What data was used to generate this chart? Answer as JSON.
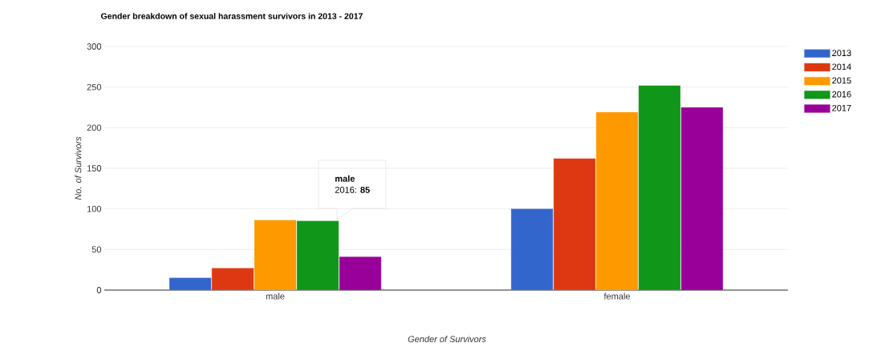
{
  "chart_data": {
    "type": "bar",
    "title": "Gender breakdown of sexual harassment survivors in 2013 - 2017",
    "xlabel": "Gender of Survivors",
    "ylabel": "No. of Survivors",
    "categories": [
      "male",
      "female"
    ],
    "series": [
      {
        "name": "2013",
        "color": "#3366cc",
        "values": [
          15,
          100
        ]
      },
      {
        "name": "2014",
        "color": "#dc3912",
        "values": [
          27,
          162
        ]
      },
      {
        "name": "2015",
        "color": "#ff9900",
        "values": [
          86,
          219
        ]
      },
      {
        "name": "2016",
        "color": "#109618",
        "values": [
          85,
          252
        ]
      },
      {
        "name": "2017",
        "color": "#990099",
        "values": [
          41,
          225
        ]
      }
    ],
    "ylim": [
      0,
      300
    ],
    "yticks": [
      0,
      50,
      100,
      150,
      200,
      250,
      300
    ],
    "grid": "y",
    "legend": "right",
    "annotations": [
      "male",
      "2016: **85**"
    ]
  }
}
